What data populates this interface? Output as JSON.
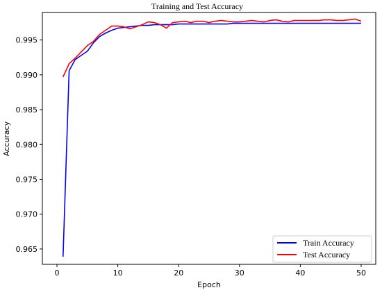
{
  "chart_data": {
    "type": "line",
    "title": "Training and Test Accuracy",
    "xlabel": "Epoch",
    "ylabel": "Accuracy",
    "xlim": [
      -2.4,
      52.4
    ],
    "ylim": [
      0.9628,
      0.99895
    ],
    "x_ticks": [
      0,
      10,
      20,
      30,
      40,
      50
    ],
    "x_tick_labels": [
      "0",
      "10",
      "20",
      "30",
      "40",
      "50"
    ],
    "y_ticks": [
      0.965,
      0.97,
      0.975,
      0.98,
      0.985,
      0.99,
      0.995
    ],
    "y_tick_labels": [
      "0.965",
      "0.970",
      "0.975",
      "0.980",
      "0.985",
      "0.990",
      "0.995"
    ],
    "grid": false,
    "legend_position": "bottom-right",
    "x": [
      1,
      2,
      3,
      4,
      5,
      6,
      7,
      8,
      9,
      10,
      11,
      12,
      13,
      14,
      15,
      16,
      17,
      18,
      19,
      20,
      21,
      22,
      23,
      24,
      25,
      26,
      27,
      28,
      29,
      30,
      31,
      32,
      33,
      34,
      35,
      36,
      37,
      38,
      39,
      40,
      41,
      42,
      43,
      44,
      45,
      46,
      47,
      48,
      49,
      50
    ],
    "series": [
      {
        "name": "Train Accuracy",
        "color": "#0000ff",
        "values": [
          0.9639,
          0.9906,
          0.9922,
          0.9928,
          0.9934,
          0.9946,
          0.9955,
          0.996,
          0.9964,
          0.9967,
          0.9968,
          0.9969,
          0.997,
          0.9971,
          0.9971,
          0.9972,
          0.9972,
          0.9972,
          0.9972,
          0.9973,
          0.9973,
          0.9973,
          0.9973,
          0.9973,
          0.9973,
          0.9973,
          0.9973,
          0.9973,
          0.9974,
          0.9974,
          0.9974,
          0.9974,
          0.9974,
          0.9974,
          0.9974,
          0.9974,
          0.9974,
          0.9974,
          0.9974,
          0.9974,
          0.9974,
          0.9974,
          0.9974,
          0.9974,
          0.9974,
          0.9974,
          0.9974,
          0.9974,
          0.9974,
          0.9974
        ]
      },
      {
        "name": "Test Accuracy",
        "color": "#ff0000",
        "values": [
          0.9897,
          0.9916,
          0.9924,
          0.9933,
          0.9942,
          0.9948,
          0.9958,
          0.9964,
          0.997,
          0.997,
          0.9969,
          0.9966,
          0.9969,
          0.9972,
          0.9976,
          0.9975,
          0.9972,
          0.9967,
          0.9975,
          0.9976,
          0.9977,
          0.9975,
          0.9977,
          0.9977,
          0.9975,
          0.9977,
          0.9978,
          0.9977,
          0.9976,
          0.9976,
          0.9977,
          0.9978,
          0.9977,
          0.9976,
          0.9978,
          0.9979,
          0.9977,
          0.9976,
          0.9978,
          0.9978,
          0.9978,
          0.9978,
          0.9978,
          0.9979,
          0.9979,
          0.9978,
          0.9978,
          0.9979,
          0.998,
          0.9977
        ]
      }
    ]
  }
}
